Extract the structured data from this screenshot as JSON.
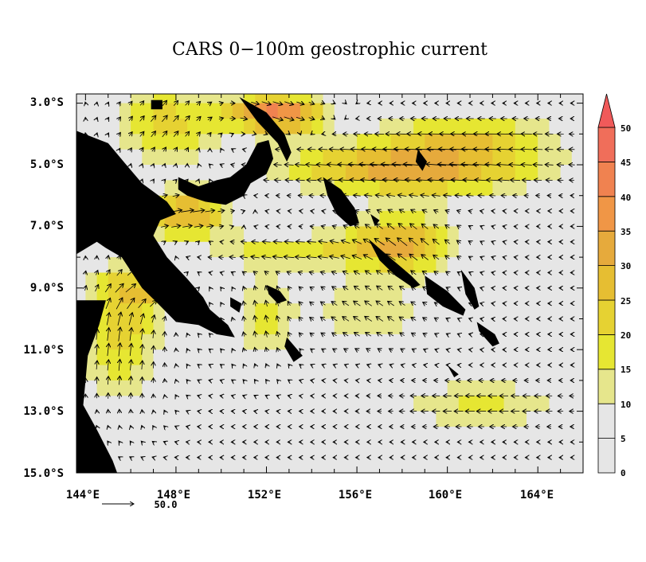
{
  "map": {
    "title": "CARS 0−100m geostrophic current",
    "lon_range": [
      143.6,
      166.0
    ],
    "lat_range": [
      -15.0,
      -2.7
    ],
    "lat_ticks": [
      "3.0°S",
      "5.0°S",
      "7.0°S",
      "9.0°S",
      "11.0°S",
      "13.0°S",
      "15.0°S"
    ],
    "lon_ticks": [
      "144°E",
      "148°E",
      "152°E",
      "156°E",
      "160°E",
      "164°E"
    ],
    "colors": {
      "bin0": "#e6e6e6",
      "bin10": "#e6e68c",
      "bin15": "#e6e632",
      "bin20": "#e6d232",
      "bin25": "#e6be32",
      "bin30": "#e6aa3c",
      "bin35": "#f09646",
      "bin40": "#f08250",
      "bin45": "#f06e5a",
      "bin50": "#f05a5a",
      "land": "#000000"
    }
  },
  "colorbar": {
    "ticks": [
      "0",
      "5",
      "10",
      "15",
      "20",
      "25",
      "30",
      "35",
      "40",
      "45",
      "50"
    ]
  },
  "reference_vector": {
    "label": "50.0"
  }
}
